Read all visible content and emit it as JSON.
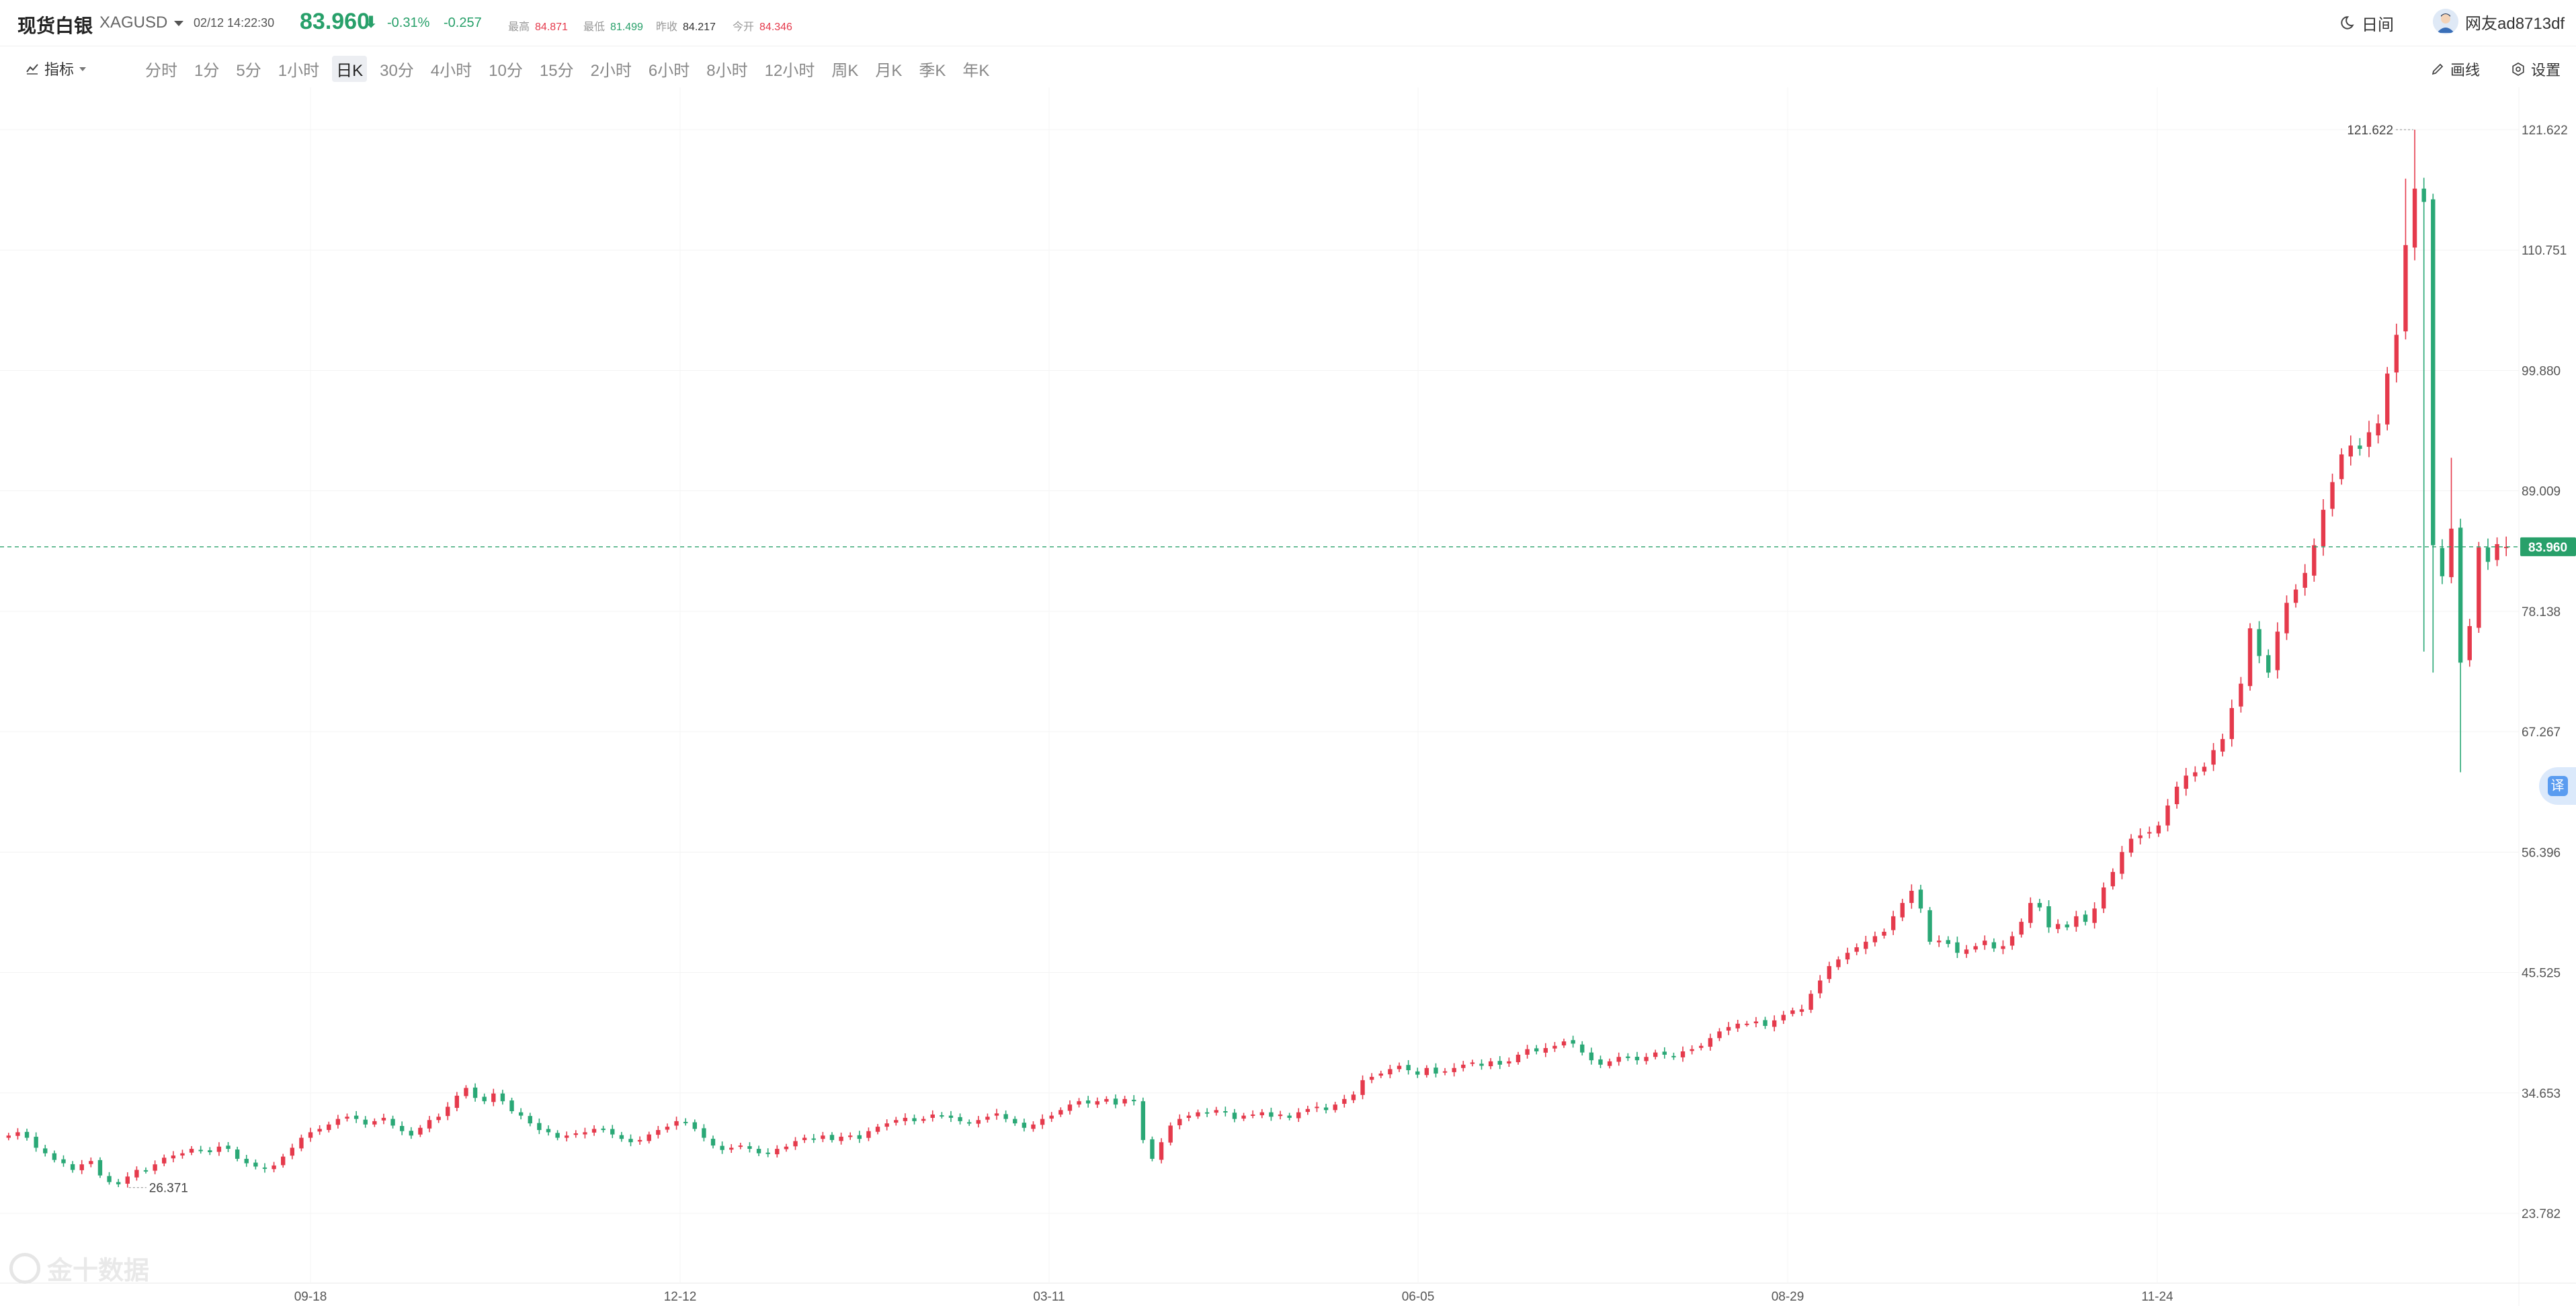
{
  "header": {
    "name": "现货白银",
    "code": "XAGUSD",
    "time": "02/12 14:22:30",
    "last_price": "83.960",
    "arrow": "⬇",
    "change_pct": "-0.31%",
    "change": "-0.257",
    "stats": [
      {
        "label": "最高",
        "value": "84.871",
        "tone": "red"
      },
      {
        "label": "最低",
        "value": "81.499",
        "tone": "green"
      },
      {
        "label": "昨收",
        "value": "84.217",
        "tone": "neutral"
      },
      {
        "label": "今开",
        "value": "84.346",
        "tone": "red"
      }
    ],
    "night_label": "日间",
    "user_name": "网友ad8713df"
  },
  "toolbar": {
    "indicator_label": "指标",
    "intervals": [
      "分时",
      "1分",
      "5分",
      "1小时",
      "日K",
      "30分",
      "4小时",
      "10分",
      "15分",
      "2小时",
      "6小时",
      "8小时",
      "12小时",
      "周K",
      "月K",
      "季K",
      "年K"
    ],
    "active_interval": "日K",
    "draw_label": "画线",
    "settings_label": "设置"
  },
  "colors": {
    "up": "#e53a4c",
    "down": "#2aa876",
    "accent": "#28a06a"
  },
  "watermark": "金十数据",
  "translate_label": "译",
  "chart_data": {
    "type": "candlestick",
    "ylim": [
      23.782,
      121.622
    ],
    "y_ticks": [
      "121.622",
      "110.751",
      "99.880",
      "89.009",
      "78.138",
      "67.267",
      "56.396",
      "45.525",
      "34.653",
      "23.782"
    ],
    "x_ticks": [
      "09-18",
      "12-12",
      "03-11",
      "06-05",
      "08-29",
      "11-24"
    ],
    "current_price": "83.960",
    "max_label": "121.622",
    "min_label": "26.371",
    "closes": [
      30.8,
      31.1,
      30.6,
      29.7,
      29.2,
      28.6,
      28.3,
      27.7,
      28.2,
      28.5,
      27.2,
      26.6,
      26.4,
      27.1,
      27.7,
      27.6,
      28.2,
      28.8,
      29.0,
      29.2,
      29.6,
      29.5,
      29.3,
      29.8,
      29.6,
      28.7,
      28.3,
      28.0,
      27.8,
      28.1,
      28.9,
      29.7,
      30.6,
      31.1,
      31.4,
      31.8,
      32.3,
      32.5,
      32.3,
      31.8,
      32.1,
      32.4,
      31.7,
      31.2,
      30.8,
      31.5,
      32.2,
      32.5,
      33.4,
      34.4,
      35.1,
      34.2,
      33.9,
      34.6,
      33.9,
      33.0,
      32.6,
      31.9,
      31.3,
      31.1,
      30.6,
      30.8,
      31.0,
      31.1,
      31.4,
      31.3,
      30.9,
      30.5,
      30.2,
      30.4,
      30.9,
      31.3,
      31.6,
      32.1,
      32.0,
      31.4,
      30.6,
      29.9,
      29.5,
      29.7,
      29.9,
      29.6,
      29.2,
      29.2,
      29.6,
      29.8,
      30.3,
      30.6,
      30.5,
      30.8,
      30.4,
      30.7,
      30.8,
      30.5,
      31.2,
      31.6,
      31.9,
      32.2,
      32.4,
      32.1,
      32.3,
      32.7,
      32.6,
      32.4,
      32.1,
      31.9,
      32.2,
      32.5,
      32.8,
      32.3,
      31.9,
      31.5,
      31.8,
      32.3,
      32.6,
      33.1,
      33.6,
      33.9,
      33.7,
      33.9,
      34.1,
      33.6,
      34.1,
      33.9,
      30.4,
      28.7,
      30.2,
      31.7,
      32.3,
      32.6,
      32.9,
      32.8,
      33.1,
      32.9,
      32.3,
      32.6,
      32.7,
      32.9,
      32.5,
      32.7,
      32.4,
      32.9,
      33.2,
      33.4,
      33.1,
      33.6,
      34.1,
      34.5,
      35.8,
      36.1,
      36.4,
      36.8,
      37.1,
      36.7,
      36.3,
      36.9,
      36.4,
      36.6,
      36.9,
      37.2,
      37.4,
      37.1,
      37.5,
      37.2,
      37.5,
      38.1,
      38.6,
      38.4,
      38.7,
      38.9,
      39.3,
      39.1,
      38.3,
      37.6,
      37.2,
      37.5,
      37.9,
      37.8,
      37.6,
      37.9,
      38.3,
      38.1,
      37.9,
      38.4,
      38.6,
      38.9,
      39.6,
      40.2,
      40.6,
      40.9,
      40.9,
      41.1,
      40.7,
      41.2,
      41.7,
      42.1,
      42.2,
      43.6,
      44.8,
      46.1,
      46.7,
      47.3,
      47.8,
      48.3,
      48.8,
      49.2,
      50.6,
      51.8,
      52.9,
      51.3,
      48.3,
      48.4,
      48.1,
      47.3,
      47.6,
      47.9,
      48.4,
      47.7,
      47.9,
      48.8,
      50.1,
      51.8,
      51.4,
      49.6,
      49.9,
      49.6,
      50.6,
      50.1,
      51.3,
      53.2,
      54.6,
      56.4,
      57.6,
      57.9,
      58.2,
      58.8,
      60.6,
      62.3,
      63.3,
      63.6,
      64.1,
      65.6,
      66.6,
      69.4,
      71.6,
      76.6,
      74.1,
      72.6,
      76.3,
      78.9,
      80.1,
      81.6,
      84.1,
      87.3,
      89.8,
      92.3,
      93.1,
      92.8,
      94.3,
      95.1,
      99.6,
      103.1,
      111.2,
      116.3,
      115.1,
      84.1,
      81.3,
      85.6,
      73.5,
      76.8,
      83.9,
      82.6,
      84.2,
      83.96
    ]
  }
}
